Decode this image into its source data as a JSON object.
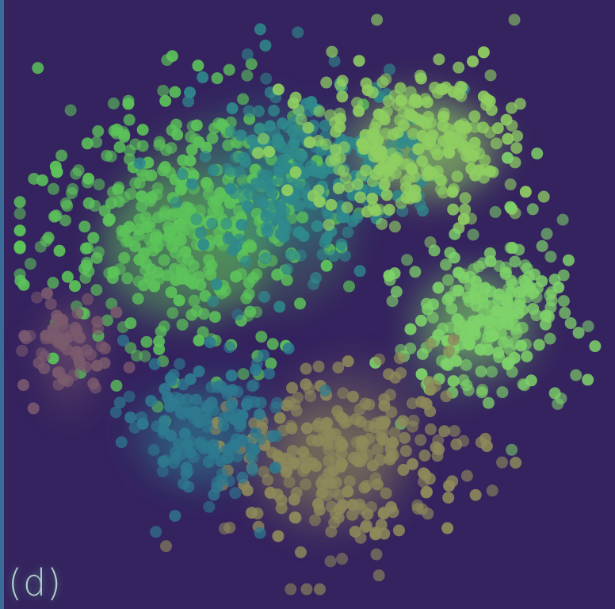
{
  "panel_label": "(d)",
  "chart_data": {
    "type": "scatter",
    "title": "",
    "xlabel": "",
    "ylabel": "",
    "xlim": [
      0,
      1
    ],
    "ylim": [
      0,
      1
    ],
    "grid": false,
    "legend": "none",
    "colormap": "viridis",
    "background": "#35235f",
    "clusters": [
      {
        "cx": 0.29,
        "cy": 0.64,
        "sx": 0.13,
        "sy": 0.11,
        "n": 420,
        "color": "#5cc45a"
      },
      {
        "cx": 0.49,
        "cy": 0.71,
        "sx": 0.09,
        "sy": 0.08,
        "n": 240,
        "color": "#2f8a8c"
      },
      {
        "cx": 0.68,
        "cy": 0.77,
        "sx": 0.1,
        "sy": 0.07,
        "n": 260,
        "color": "#8fcf62"
      },
      {
        "cx": 0.8,
        "cy": 0.48,
        "sx": 0.07,
        "sy": 0.07,
        "n": 230,
        "color": "#7ed36a"
      },
      {
        "cx": 0.56,
        "cy": 0.24,
        "sx": 0.1,
        "sy": 0.08,
        "n": 260,
        "color": "#8e8a5a"
      },
      {
        "cx": 0.33,
        "cy": 0.3,
        "sx": 0.07,
        "sy": 0.07,
        "n": 150,
        "color": "#2e7a90"
      },
      {
        "cx": 0.1,
        "cy": 0.42,
        "sx": 0.04,
        "sy": 0.05,
        "n": 60,
        "color": "#7b5a6e"
      }
    ]
  }
}
